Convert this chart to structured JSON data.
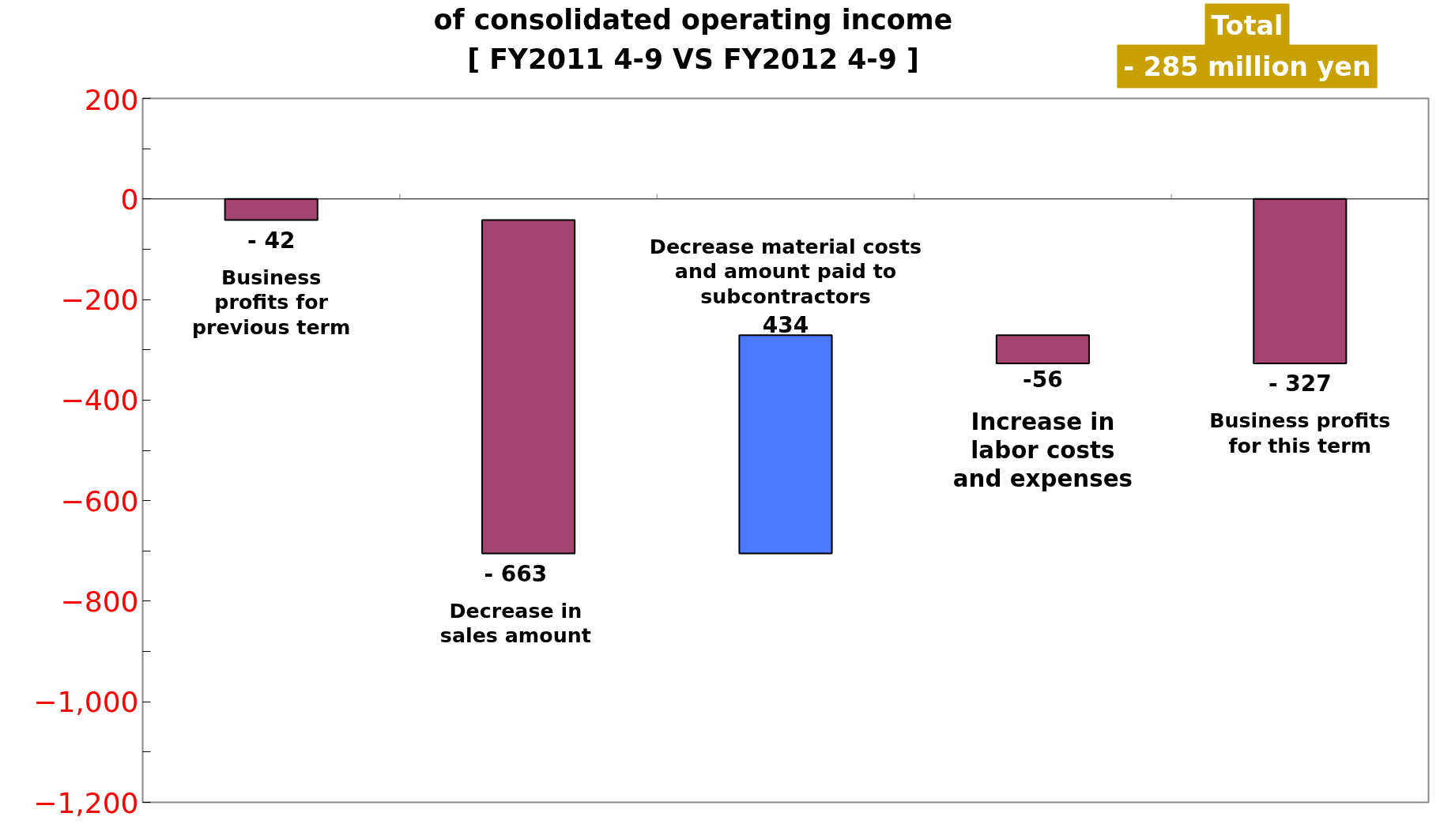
{
  "chart_data": {
    "type": "bar",
    "title": "of consolidated operating income\n[ FY2011 4-9 VS FY2012 4-9 ]",
    "categories": [
      null,
      null,
      null,
      null,
      null
    ],
    "values": [
      -42,
      -663,
      434,
      -56,
      -327
    ],
    "base": [
      0,
      -42,
      -705,
      -271,
      0
    ],
    "colors": [
      "#a3436e",
      "#a3436e",
      "#4a78ff",
      "#a3436e",
      "#a3436e"
    ],
    "value_labels": [
      "- 42",
      "- 663",
      "434",
      "-56",
      "- 327"
    ],
    "annotations": [
      "Business\nprofits for\nprevious term",
      "Decrease in\nsales amount",
      "Decrease material costs\nand amount paid to\nsubcontractors",
      "Increase in\nlabor costs\nand expenses",
      "Business profits\nfor this term",
      "Total\n- 285 million yen"
    ],
    "ylim": [
      -1200,
      200
    ],
    "yticks": [
      200,
      0,
      {
        "value": -200,
        "label": "−200"
      },
      {
        "value": -400,
        "label": "−400"
      },
      {
        "value": -600,
        "label": "−600"
      },
      {
        "value": -800,
        "label": "−800"
      },
      {
        "value": -1000,
        "label": "−1,000"
      },
      {
        "value": -1200,
        "label": "−1,200"
      }
    ]
  }
}
